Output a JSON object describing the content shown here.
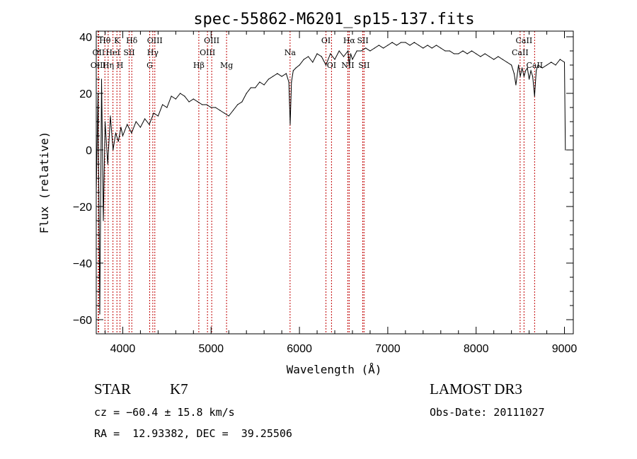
{
  "chart_data": {
    "type": "line",
    "title": "spec-55862-M6201_sp15-137.fits",
    "xlabel": "Wavelength (Å)",
    "ylabel": "Flux (relative)",
    "xlim": [
      3700,
      9100
    ],
    "ylim": [
      -65,
      42
    ],
    "x_ticks": [
      4000,
      5000,
      6000,
      7000,
      8000,
      9000
    ],
    "y_ticks": [
      -60,
      -40,
      -20,
      0,
      20,
      40
    ],
    "x_minor_step": 200,
    "y_minor_step": 5,
    "line_color": "#c00000",
    "series": [
      {
        "name": "spectrum",
        "x": [
          3700,
          3720,
          3740,
          3760,
          3780,
          3800,
          3830,
          3860,
          3890,
          3920,
          3950,
          3980,
          4000,
          4050,
          4100,
          4150,
          4200,
          4250,
          4300,
          4350,
          4400,
          4450,
          4500,
          4550,
          4600,
          4650,
          4700,
          4750,
          4800,
          4850,
          4900,
          4950,
          5000,
          5050,
          5100,
          5150,
          5200,
          5250,
          5300,
          5350,
          5400,
          5450,
          5500,
          5550,
          5600,
          5650,
          5700,
          5750,
          5800,
          5850,
          5880,
          5895,
          5910,
          5930,
          5960,
          6000,
          6050,
          6100,
          6150,
          6200,
          6250,
          6300,
          6350,
          6400,
          6450,
          6500,
          6550,
          6563,
          6580,
          6600,
          6650,
          6700,
          6750,
          6800,
          6850,
          6900,
          6950,
          7000,
          7050,
          7100,
          7150,
          7200,
          7250,
          7300,
          7350,
          7400,
          7450,
          7500,
          7550,
          7600,
          7650,
          7700,
          7750,
          7800,
          7850,
          7900,
          7950,
          8000,
          8050,
          8100,
          8150,
          8200,
          8250,
          8300,
          8350,
          8400,
          8430,
          8450,
          8480,
          8500,
          8520,
          8542,
          8560,
          8580,
          8600,
          8620,
          8640,
          8662,
          8680,
          8700,
          8750,
          8800,
          8850,
          8900,
          8950,
          9000,
          9010
        ],
        "y": [
          -15,
          20,
          -58,
          25,
          -25,
          10,
          -5,
          12,
          0,
          6,
          3,
          8,
          5,
          9,
          6,
          10,
          8,
          11,
          9,
          13,
          12,
          16,
          15,
          19,
          18,
          20,
          19,
          17,
          18,
          17,
          16,
          16,
          15,
          15,
          14,
          13,
          12,
          14,
          16,
          17,
          20,
          22,
          22,
          24,
          23,
          25,
          26,
          27,
          26,
          27,
          24,
          9,
          24,
          28,
          29,
          30,
          32,
          33,
          31,
          34,
          33,
          30,
          34,
          32,
          35,
          33,
          35,
          30,
          34,
          32,
          35,
          35,
          36,
          35,
          36,
          37,
          36,
          37,
          38,
          37,
          38,
          38,
          37,
          38,
          37,
          36,
          37,
          36,
          37,
          36,
          35,
          35,
          34,
          34,
          35,
          34,
          35,
          34,
          33,
          34,
          33,
          32,
          33,
          32,
          31,
          30,
          27,
          23,
          30,
          26,
          29,
          26,
          28,
          29,
          25,
          28,
          26,
          19,
          28,
          30,
          29,
          30,
          31,
          30,
          32,
          31,
          0
        ]
      }
    ],
    "lines": [
      {
        "label": "Hθ",
        "x": 3798,
        "row": 1
      },
      {
        "label": "OII",
        "x": 3727,
        "row": 2
      },
      {
        "label": "OIII",
        "x": 3722,
        "row": 3
      },
      {
        "label": "K",
        "x": 3934,
        "row": 1
      },
      {
        "label": "HeI",
        "x": 3889,
        "row": 2
      },
      {
        "label": "Hη",
        "x": 3835,
        "row": 3
      },
      {
        "label": "H",
        "x": 3969,
        "row": 3
      },
      {
        "label": "Hδ",
        "x": 4102,
        "row": 1
      },
      {
        "label": "SII",
        "x": 4072,
        "row": 2
      },
      {
        "label": "OIII",
        "x": 4363,
        "row": 1
      },
      {
        "label": "Hγ",
        "x": 4340,
        "row": 2
      },
      {
        "label": "G",
        "x": 4305,
        "row": 3
      },
      {
        "label": "Hβ",
        "x": 4861,
        "row": 3
      },
      {
        "label": "OIII",
        "x": 5007,
        "row": 1
      },
      {
        "label": "OIII",
        "x": 4959,
        "row": 2
      },
      {
        "label": "Mg",
        "x": 5175,
        "row": 3
      },
      {
        "label": "Na",
        "x": 5894,
        "row": 2
      },
      {
        "label": "OI",
        "x": 6300,
        "row": 1
      },
      {
        "label": "OI",
        "x": 6363,
        "row": 3
      },
      {
        "label": "Hα",
        "x": 6563,
        "row": 1
      },
      {
        "label": "NII",
        "x": 6548,
        "row": 3
      },
      {
        "label": "SII",
        "x": 6717,
        "row": 1
      },
      {
        "label": "SII",
        "x": 6731,
        "row": 3
      },
      {
        "label": "CaII",
        "x": 8542,
        "row": 1
      },
      {
        "label": "CaII",
        "x": 8498,
        "row": 2
      },
      {
        "label": "CaII",
        "x": 8662,
        "row": 3
      }
    ]
  },
  "info": {
    "class_label": "STAR",
    "subclass_label": "K7",
    "cz": "cz = −60.4 ± 15.8 km/s",
    "radec": "RA =  12.93382, DEC =  39.25506",
    "survey": "LAMOST DR3",
    "obs_date": "Obs-Date: 20111027"
  }
}
